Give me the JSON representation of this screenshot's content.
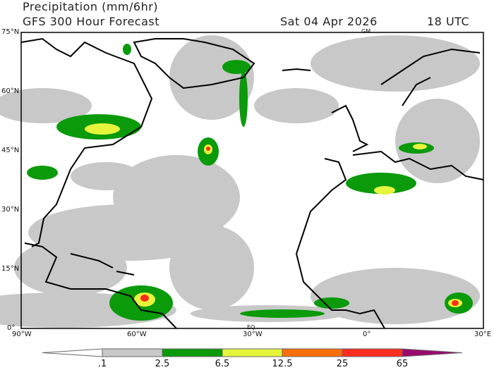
{
  "header": {
    "title": "Precipitation (mm/6hr)",
    "subtitle": "GFS 300 Hour Forecast",
    "date": "Sat 04 Apr 2026",
    "time": "18 UTC"
  },
  "map": {
    "lat_labels": [
      "75°N",
      "60°N",
      "45°N",
      "30°N",
      "15°N",
      "0°"
    ],
    "lon_labels": [
      "90°W",
      "60°W",
      "30°W",
      "0°",
      "30°E"
    ],
    "markers": {
      "prime_meridian": "GM",
      "equator": "EQ"
    }
  },
  "colorbar": {
    "levels": [
      ".1",
      "2.5",
      "6.5",
      "12.5",
      "25",
      "65"
    ],
    "colors": [
      "#ffffff",
      "#c8c8c8",
      "#0a9a0a",
      "#e6f53c",
      "#fa6e0a",
      "#fa2d1e",
      "#9a0a6e"
    ]
  }
}
